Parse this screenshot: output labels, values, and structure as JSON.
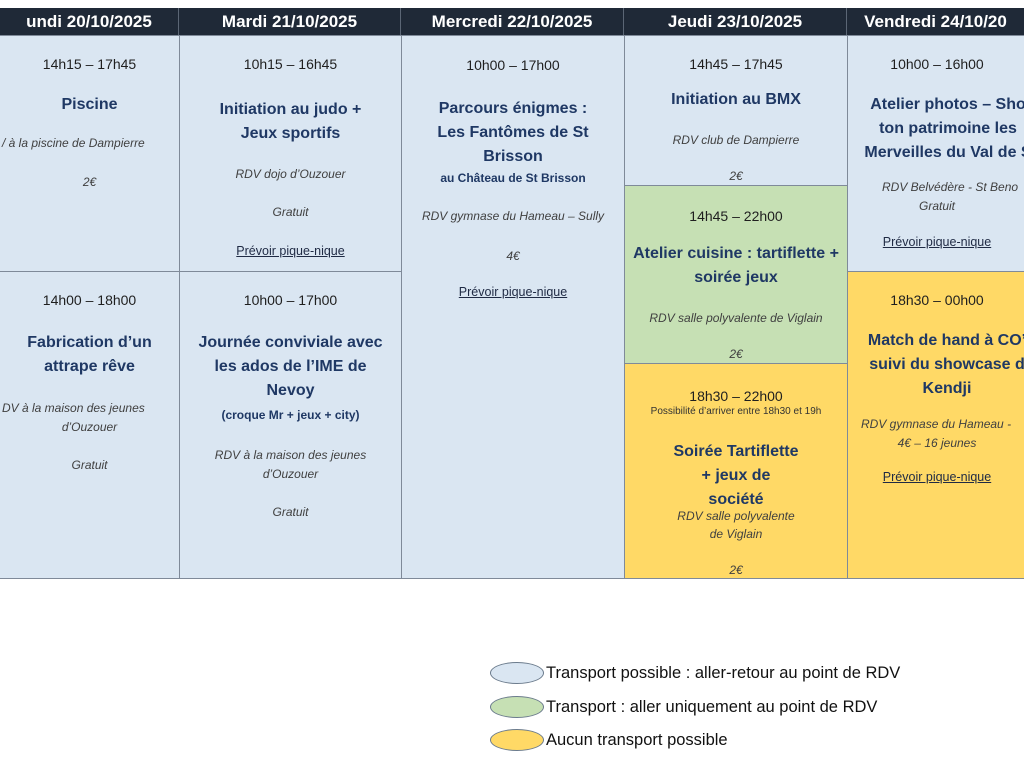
{
  "headers": [
    "undi 20/10/2025",
    "Mardi 21/10/2025",
    "Mercredi 22/10/2025",
    "Jeudi 23/10/2025",
    "Vendredi 24/10/20"
  ],
  "monday": {
    "a": {
      "time": "14h15 – 17h45",
      "title": "Piscine",
      "place": "/ à la piscine de Dampierre",
      "price": "2€"
    },
    "b": {
      "time": "14h00 – 18h00",
      "title": "Fabrication d’un attrape rêve",
      "place1": "DV à la maison des jeunes",
      "place2": "d’Ouzouer",
      "price": "Gratuit"
    }
  },
  "tuesday": {
    "a": {
      "time": "10h15 – 16h45",
      "title": "Initiation au judo + Jeux sportifs",
      "place": "RDV dojo d’Ouzouer",
      "price": "Gratuit",
      "link": "Prévoir pique-nique"
    },
    "b": {
      "time": "10h00 – 17h00",
      "title": "Journée conviviale avec les ados de l’IME de Nevoy",
      "sub": "(croque Mr + jeux + city)",
      "place1": "RDV à la maison des jeunes",
      "place2": "d’Ouzouer",
      "price": "Gratuit"
    }
  },
  "wednesday": {
    "a": {
      "time": "10h00 – 17h00",
      "title": "Parcours énigmes : Les Fantômes de St Brisson",
      "sub": "au Château de St Brisson",
      "place": "RDV gymnase du Hameau – Sully",
      "price": "4€",
      "link": "Prévoir pique-nique"
    }
  },
  "thursday": {
    "a": {
      "time": "14h45 – 17h45",
      "title": "Initiation au BMX",
      "place": "RDV club de Dampierre",
      "price": "2€"
    },
    "b": {
      "time": "14h45 – 22h00",
      "title": "Atelier cuisine : tartiflette + soirée jeux",
      "place": "RDV salle polyvalente de Viglain",
      "price": "2€"
    },
    "c": {
      "time": "18h30 – 22h00",
      "note": "Possibilité d’arriver entre 18h30 et 19h",
      "title": "Soirée Tartiflette + jeux de société",
      "place1": "RDV salle polyvalente",
      "place2": "de Viglain",
      "price": "2€"
    }
  },
  "friday": {
    "a": {
      "time": "10h00 – 16h00",
      "title": "Atelier photos – Sho ton patrimoine les Merveilles du Val de S",
      "place": "RDV Belvédère - St Beno",
      "price": "Gratuit",
      "link": "Prévoir pique-nique"
    },
    "b": {
      "time": "18h30 – 00h00",
      "title": "Match de hand à CO’ suivi du showcase d Kendji",
      "place": "RDV gymnase du Hameau -",
      "price": "4€ – 16 jeunes",
      "link": "Prévoir pique-nique"
    }
  },
  "legend": [
    {
      "color": "#dae6f2",
      "text": "Transport possible : aller-retour au point de RDV"
    },
    {
      "color": "#c6e0b4",
      "text": "Transport : aller uniquement au point de RDV"
    },
    {
      "color": "#ffd966",
      "text": "Aucun transport possible"
    }
  ]
}
